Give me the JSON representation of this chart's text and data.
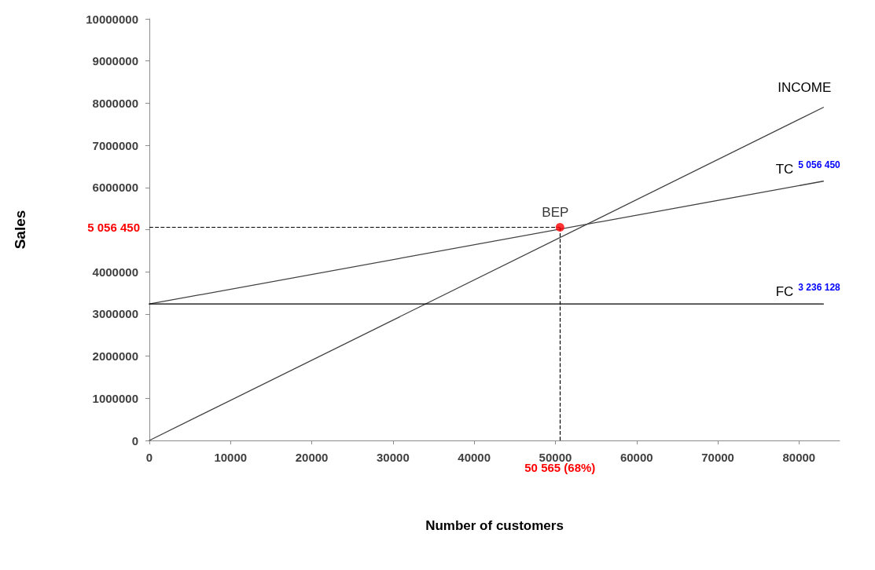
{
  "chart_data": {
    "type": "line",
    "xlabel": "Number of customers",
    "ylabel": "Sales",
    "xlim": [
      0,
      85000
    ],
    "xticks": [
      0,
      10000,
      20000,
      30000,
      40000,
      50000,
      60000,
      70000,
      80000
    ],
    "ylim": [
      0,
      10000000
    ],
    "yticks": [
      0,
      1000000,
      2000000,
      3000000,
      4000000,
      {
        "value": 5000000,
        "label": null
      },
      6000000,
      7000000,
      8000000,
      9000000,
      10000000
    ],
    "grid": false,
    "legend": false,
    "marker": "none",
    "line_style": "solid",
    "series": [
      {
        "name": "INCOME",
        "color": "#404040",
        "x": [
          0,
          83000
        ],
        "values": [
          0,
          7900000
        ]
      },
      {
        "name": "TC",
        "color": "#404040",
        "x": [
          0,
          83000
        ],
        "values": [
          3236128,
          6150000
        ]
      },
      {
        "name": "FC",
        "color": "#000000",
        "x": [
          0,
          83000
        ],
        "values": [
          3236128,
          3236128
        ]
      },
      {
        "name": "BEP",
        "type": "scatter",
        "marker": "circle",
        "color": "#ff0000",
        "x": [
          50565
        ],
        "values": [
          5056450
        ]
      }
    ],
    "ref_lines": [
      {
        "axis": "x",
        "value": 50565,
        "label": "50 565 (68%)",
        "color": "#000000",
        "line_style": "dashed"
      },
      {
        "axis": "y",
        "value": 5056450,
        "label": "5 056 450",
        "color": "#000000",
        "line_style": "dashed"
      }
    ],
    "annotations": [
      {
        "text": "5 056 450",
        "x": 83000,
        "y": 6150000
      },
      {
        "text": "3 236 128",
        "x": 83000,
        "y": 3236128
      }
    ]
  }
}
